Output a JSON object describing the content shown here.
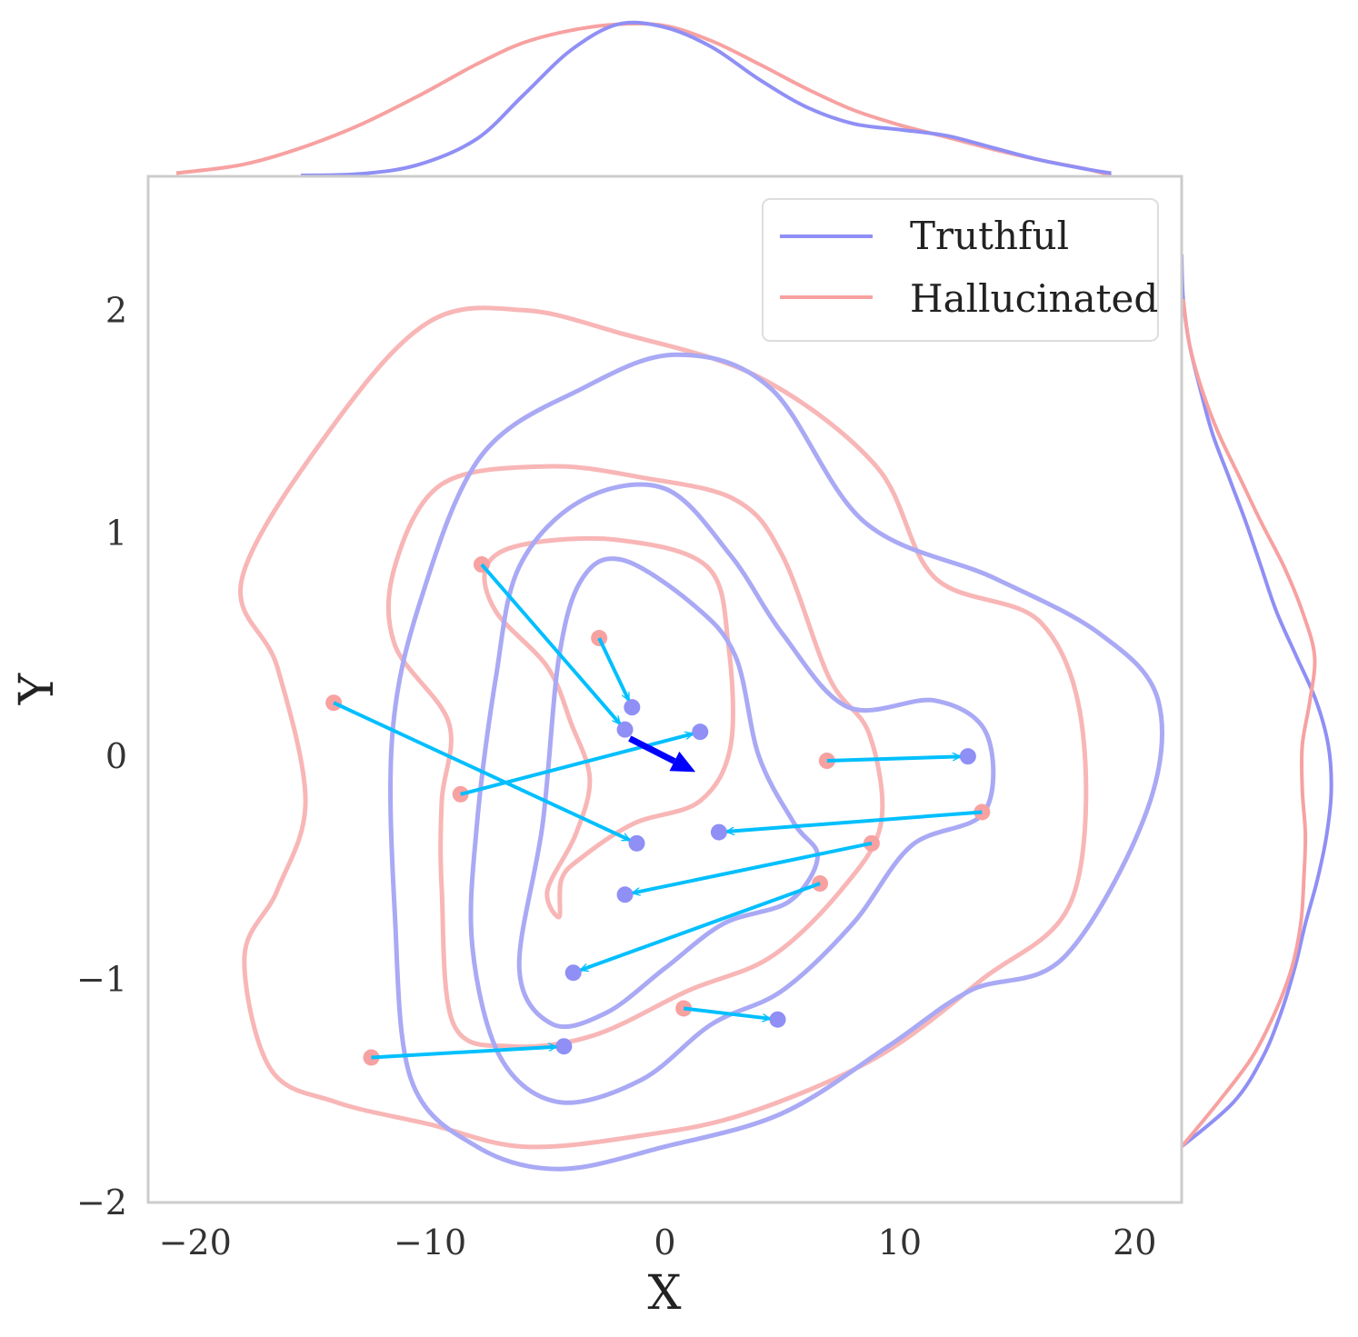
{
  "chart_data": {
    "type": "scatter",
    "xlabel": "X",
    "ylabel": "Y",
    "xlim": [
      -22,
      22
    ],
    "ylim": [
      -2,
      2.6
    ],
    "xticks": [
      -20,
      -10,
      0,
      10,
      20
    ],
    "xtick_labels": [
      "−20",
      "−10",
      "0",
      "10",
      "20"
    ],
    "yticks": [
      -2,
      -1,
      0,
      1,
      2
    ],
    "ytick_labels": [
      "−2",
      "−1",
      "0",
      "1",
      "2"
    ],
    "grid": false,
    "legend": {
      "position": "top-right",
      "entries": [
        {
          "label": "Truthful",
          "color": "#8f8ff5"
        },
        {
          "label": "Hallucinated",
          "color": "#f7a1a1"
        }
      ]
    },
    "colors": {
      "truthful": "#8f8ff5",
      "hallucinated": "#f7a1a1",
      "truthful_contour": "#a9a9f5",
      "hallucinated_contour": "#f8b6b6",
      "arrow": "#00bfff",
      "mean_shift_arrow": "#0000ff",
      "frame": "#cccccc"
    },
    "points_hallucinated": [
      [
        -7.8,
        0.86
      ],
      [
        -2.8,
        0.53
      ],
      [
        -14.1,
        0.24
      ],
      [
        -8.7,
        -0.17
      ],
      [
        6.9,
        -0.02
      ],
      [
        13.5,
        -0.25
      ],
      [
        8.8,
        -0.39
      ],
      [
        6.6,
        -0.57
      ],
      [
        0.8,
        -1.13
      ],
      [
        -12.5,
        -1.35
      ]
    ],
    "points_truthful": [
      [
        -1.7,
        0.12
      ],
      [
        -1.4,
        0.22
      ],
      [
        1.5,
        0.11
      ],
      [
        -1.2,
        -0.39
      ],
      [
        12.9,
        0.0
      ],
      [
        2.3,
        -0.34
      ],
      [
        -1.7,
        -0.62
      ],
      [
        -3.9,
        -0.97
      ],
      [
        4.8,
        -1.18
      ],
      [
        -4.3,
        -1.3
      ]
    ],
    "shifts": [
      {
        "from": [
          -7.8,
          0.86
        ],
        "to": [
          -1.7,
          0.12
        ]
      },
      {
        "from": [
          -2.8,
          0.53
        ],
        "to": [
          -1.4,
          0.22
        ]
      },
      {
        "from": [
          -14.1,
          0.24
        ],
        "to": [
          -1.2,
          -0.39
        ]
      },
      {
        "from": [
          -8.7,
          -0.17
        ],
        "to": [
          1.5,
          0.11
        ]
      },
      {
        "from": [
          6.9,
          -0.02
        ],
        "to": [
          12.9,
          0.0
        ]
      },
      {
        "from": [
          13.5,
          -0.25
        ],
        "to": [
          2.3,
          -0.34
        ]
      },
      {
        "from": [
          8.8,
          -0.39
        ],
        "to": [
          -1.7,
          -0.62
        ]
      },
      {
        "from": [
          6.6,
          -0.57
        ],
        "to": [
          -3.9,
          -0.97
        ]
      },
      {
        "from": [
          0.8,
          -1.13
        ],
        "to": [
          4.8,
          -1.18
        ]
      },
      {
        "from": [
          -12.5,
          -1.35
        ],
        "to": [
          -4.3,
          -1.3
        ]
      }
    ],
    "mean_shift": {
      "from": [
        -1.5,
        0.08
      ],
      "to": [
        1.3,
        -0.07
      ]
    },
    "contours_truthful": [
      [
        [
          -4.5,
          -1.85
        ],
        [
          -8,
          -1.75
        ],
        [
          -10.8,
          -1.45
        ],
        [
          -11.5,
          -0.7
        ],
        [
          -11.6,
          0.1
        ],
        [
          -10.4,
          0.7
        ],
        [
          -7.8,
          1.35
        ],
        [
          -3.5,
          1.65
        ],
        [
          0.5,
          1.8
        ],
        [
          4.5,
          1.65
        ],
        [
          8.5,
          1.05
        ],
        [
          14,
          0.8
        ],
        [
          18.5,
          0.55
        ],
        [
          21,
          0.25
        ],
        [
          20.5,
          -0.25
        ],
        [
          17,
          -0.9
        ],
        [
          13,
          -1.05
        ],
        [
          9.5,
          -1.3
        ],
        [
          5,
          -1.6
        ],
        [
          0,
          -1.75
        ]
      ],
      [
        [
          -4.5,
          -1.55
        ],
        [
          -7,
          -1.35
        ],
        [
          -8.2,
          -0.85
        ],
        [
          -8,
          -0.3
        ],
        [
          -7.2,
          0.35
        ],
        [
          -6.2,
          0.85
        ],
        [
          -3.5,
          1.15
        ],
        [
          0,
          1.2
        ],
        [
          2.8,
          0.9
        ],
        [
          5,
          0.55
        ],
        [
          7.8,
          0.22
        ],
        [
          11.5,
          0.25
        ],
        [
          13.7,
          0.1
        ],
        [
          13.6,
          -0.25
        ],
        [
          10.5,
          -0.4
        ],
        [
          8,
          -0.75
        ],
        [
          5,
          -1.05
        ],
        [
          2,
          -1.2
        ],
        [
          -1,
          -1.45
        ]
      ],
      [
        [
          -4.8,
          -1.2
        ],
        [
          -6.2,
          -0.95
        ],
        [
          -5.2,
          -0.3
        ],
        [
          -4.5,
          0.45
        ],
        [
          -3.5,
          0.8
        ],
        [
          -1.8,
          0.88
        ],
        [
          1.2,
          0.68
        ],
        [
          3,
          0.45
        ],
        [
          4,
          0
        ],
        [
          5.5,
          -0.3
        ],
        [
          6.5,
          -0.45
        ],
        [
          5.3,
          -0.65
        ],
        [
          2.5,
          -0.75
        ],
        [
          0,
          -0.95
        ],
        [
          -2.5,
          -1.15
        ]
      ]
    ],
    "contours_hallucinated": [
      [
        [
          -14,
          -1.55
        ],
        [
          -16.8,
          -1.4
        ],
        [
          -17.9,
          -0.9
        ],
        [
          -16.5,
          -0.6
        ],
        [
          -15.3,
          -0.2
        ],
        [
          -16.5,
          0.4
        ],
        [
          -18,
          0.8
        ],
        [
          -14,
          1.5
        ],
        [
          -10,
          1.95
        ],
        [
          -6,
          2.0
        ],
        [
          -2,
          1.9
        ],
        [
          4,
          1.7
        ],
        [
          9,
          1.3
        ],
        [
          11.5,
          0.8
        ],
        [
          16,
          0.6
        ],
        [
          17.8,
          0.1
        ],
        [
          17.3,
          -0.65
        ],
        [
          13.5,
          -1.0
        ],
        [
          9,
          -1.35
        ],
        [
          3.5,
          -1.6
        ],
        [
          -1,
          -1.7
        ],
        [
          -6,
          -1.75
        ],
        [
          -10,
          -1.65
        ]
      ],
      [
        [
          -6.5,
          -1.3
        ],
        [
          -9,
          -1.2
        ],
        [
          -9.5,
          -0.6
        ],
        [
          -9.5,
          -0.2
        ],
        [
          -9.2,
          0.15
        ],
        [
          -11.5,
          0.5
        ],
        [
          -11.5,
          0.85
        ],
        [
          -9.5,
          1.22
        ],
        [
          -5,
          1.3
        ],
        [
          -1,
          1.25
        ],
        [
          3,
          1.15
        ],
        [
          5,
          0.9
        ],
        [
          7,
          0.35
        ],
        [
          8.7,
          0.1
        ],
        [
          9.2,
          -0.3
        ],
        [
          7.5,
          -0.6
        ],
        [
          4.5,
          -0.9
        ],
        [
          1,
          -1.05
        ],
        [
          -3,
          -1.25
        ]
      ],
      [
        [
          -4.5,
          -0.72
        ],
        [
          -4.4,
          -0.55
        ],
        [
          -3.5,
          -0.45
        ],
        [
          -1.3,
          -0.3
        ],
        [
          1.5,
          -0.2
        ],
        [
          2.8,
          0.05
        ],
        [
          2.7,
          0.5
        ],
        [
          1.8,
          0.85
        ],
        [
          -2,
          0.97
        ],
        [
          -6,
          0.95
        ],
        [
          -7.6,
          0.85
        ],
        [
          -7.2,
          0.65
        ],
        [
          -5,
          0.4
        ],
        [
          -4,
          0.15
        ],
        [
          -3.2,
          -0.1
        ],
        [
          -3.8,
          -0.35
        ],
        [
          -5,
          -0.6
        ]
      ]
    ],
    "marginal_x": {
      "grid": [
        -20.8,
        -18,
        -15.5,
        -13,
        -10.5,
        -8,
        -6,
        -4,
        -2,
        0,
        2,
        4,
        6,
        8,
        10,
        12,
        14,
        16,
        18,
        19
      ],
      "truthful": [
        null,
        null,
        0.0,
        0.01,
        0.07,
        0.24,
        0.53,
        0.82,
        0.99,
        0.97,
        0.84,
        0.63,
        0.45,
        0.34,
        0.3,
        0.26,
        0.18,
        0.1,
        0.04,
        0.015
      ],
      "hallucinated": [
        0.015,
        0.07,
        0.18,
        0.33,
        0.52,
        0.73,
        0.87,
        0.95,
        0.99,
        0.98,
        0.88,
        0.73,
        0.57,
        0.43,
        0.33,
        0.25,
        0.17,
        0.1,
        0.04,
        0.0
      ]
    },
    "marginal_y": {
      "grid": [
        -1.75,
        -1.55,
        -1.35,
        -1.15,
        -0.95,
        -0.75,
        -0.55,
        -0.35,
        -0.15,
        0.05,
        0.25,
        0.45,
        0.65,
        0.85,
        1.05,
        1.25,
        1.45,
        1.65,
        1.85,
        2.05,
        2.25
      ],
      "truthful": [
        0.0,
        0.34,
        0.53,
        0.65,
        0.74,
        0.81,
        0.89,
        0.95,
        0.98,
        0.96,
        0.88,
        0.75,
        0.62,
        0.52,
        0.42,
        0.31,
        0.2,
        0.12,
        0.05,
        0.01,
        0.0
      ],
      "hallucinated": [
        0.0,
        0.24,
        0.46,
        0.61,
        0.72,
        0.78,
        0.8,
        0.81,
        0.79,
        0.79,
        0.84,
        0.87,
        0.79,
        0.67,
        0.52,
        0.38,
        0.24,
        0.13,
        0.05,
        0.01,
        null
      ]
    }
  }
}
